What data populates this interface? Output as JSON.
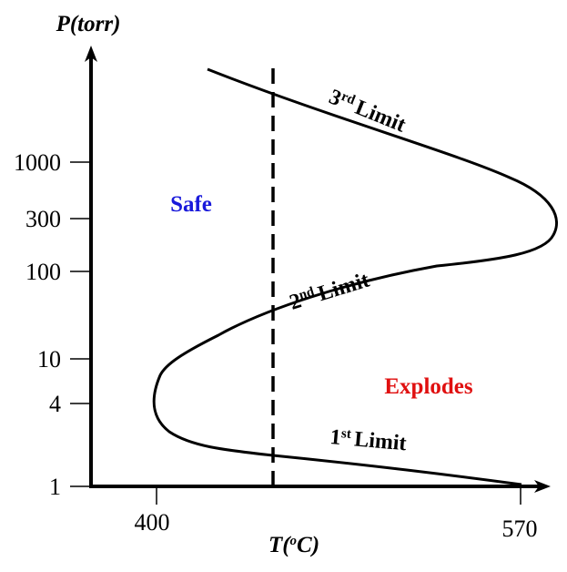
{
  "axes": {
    "y_title": "P(torr)",
    "x_title_prefix": "T(",
    "x_title_sup": "o",
    "x_title_suffix": "C)",
    "y_ticks": [
      {
        "label": "1000"
      },
      {
        "label": "300"
      },
      {
        "label": "100"
      },
      {
        "label": "10"
      },
      {
        "label": "4"
      },
      {
        "label": "1"
      }
    ],
    "x_ticks": [
      {
        "label": "400"
      },
      {
        "label": "570"
      }
    ]
  },
  "limits": [
    {
      "ordinal": "3",
      "sup": "rd",
      "word": "Limit"
    },
    {
      "ordinal": "2",
      "sup": "nd",
      "word": "Limit"
    },
    {
      "ordinal": "1",
      "sup": "st",
      "word": "Limit"
    }
  ],
  "regions": {
    "safe": {
      "label": "Safe",
      "color": "#1a1adb"
    },
    "explodes": {
      "label": "Explodes",
      "color": "#e01010"
    }
  },
  "colors": {
    "curve": "#000000",
    "axis": "#000000",
    "dashed_line": "#000000"
  }
}
